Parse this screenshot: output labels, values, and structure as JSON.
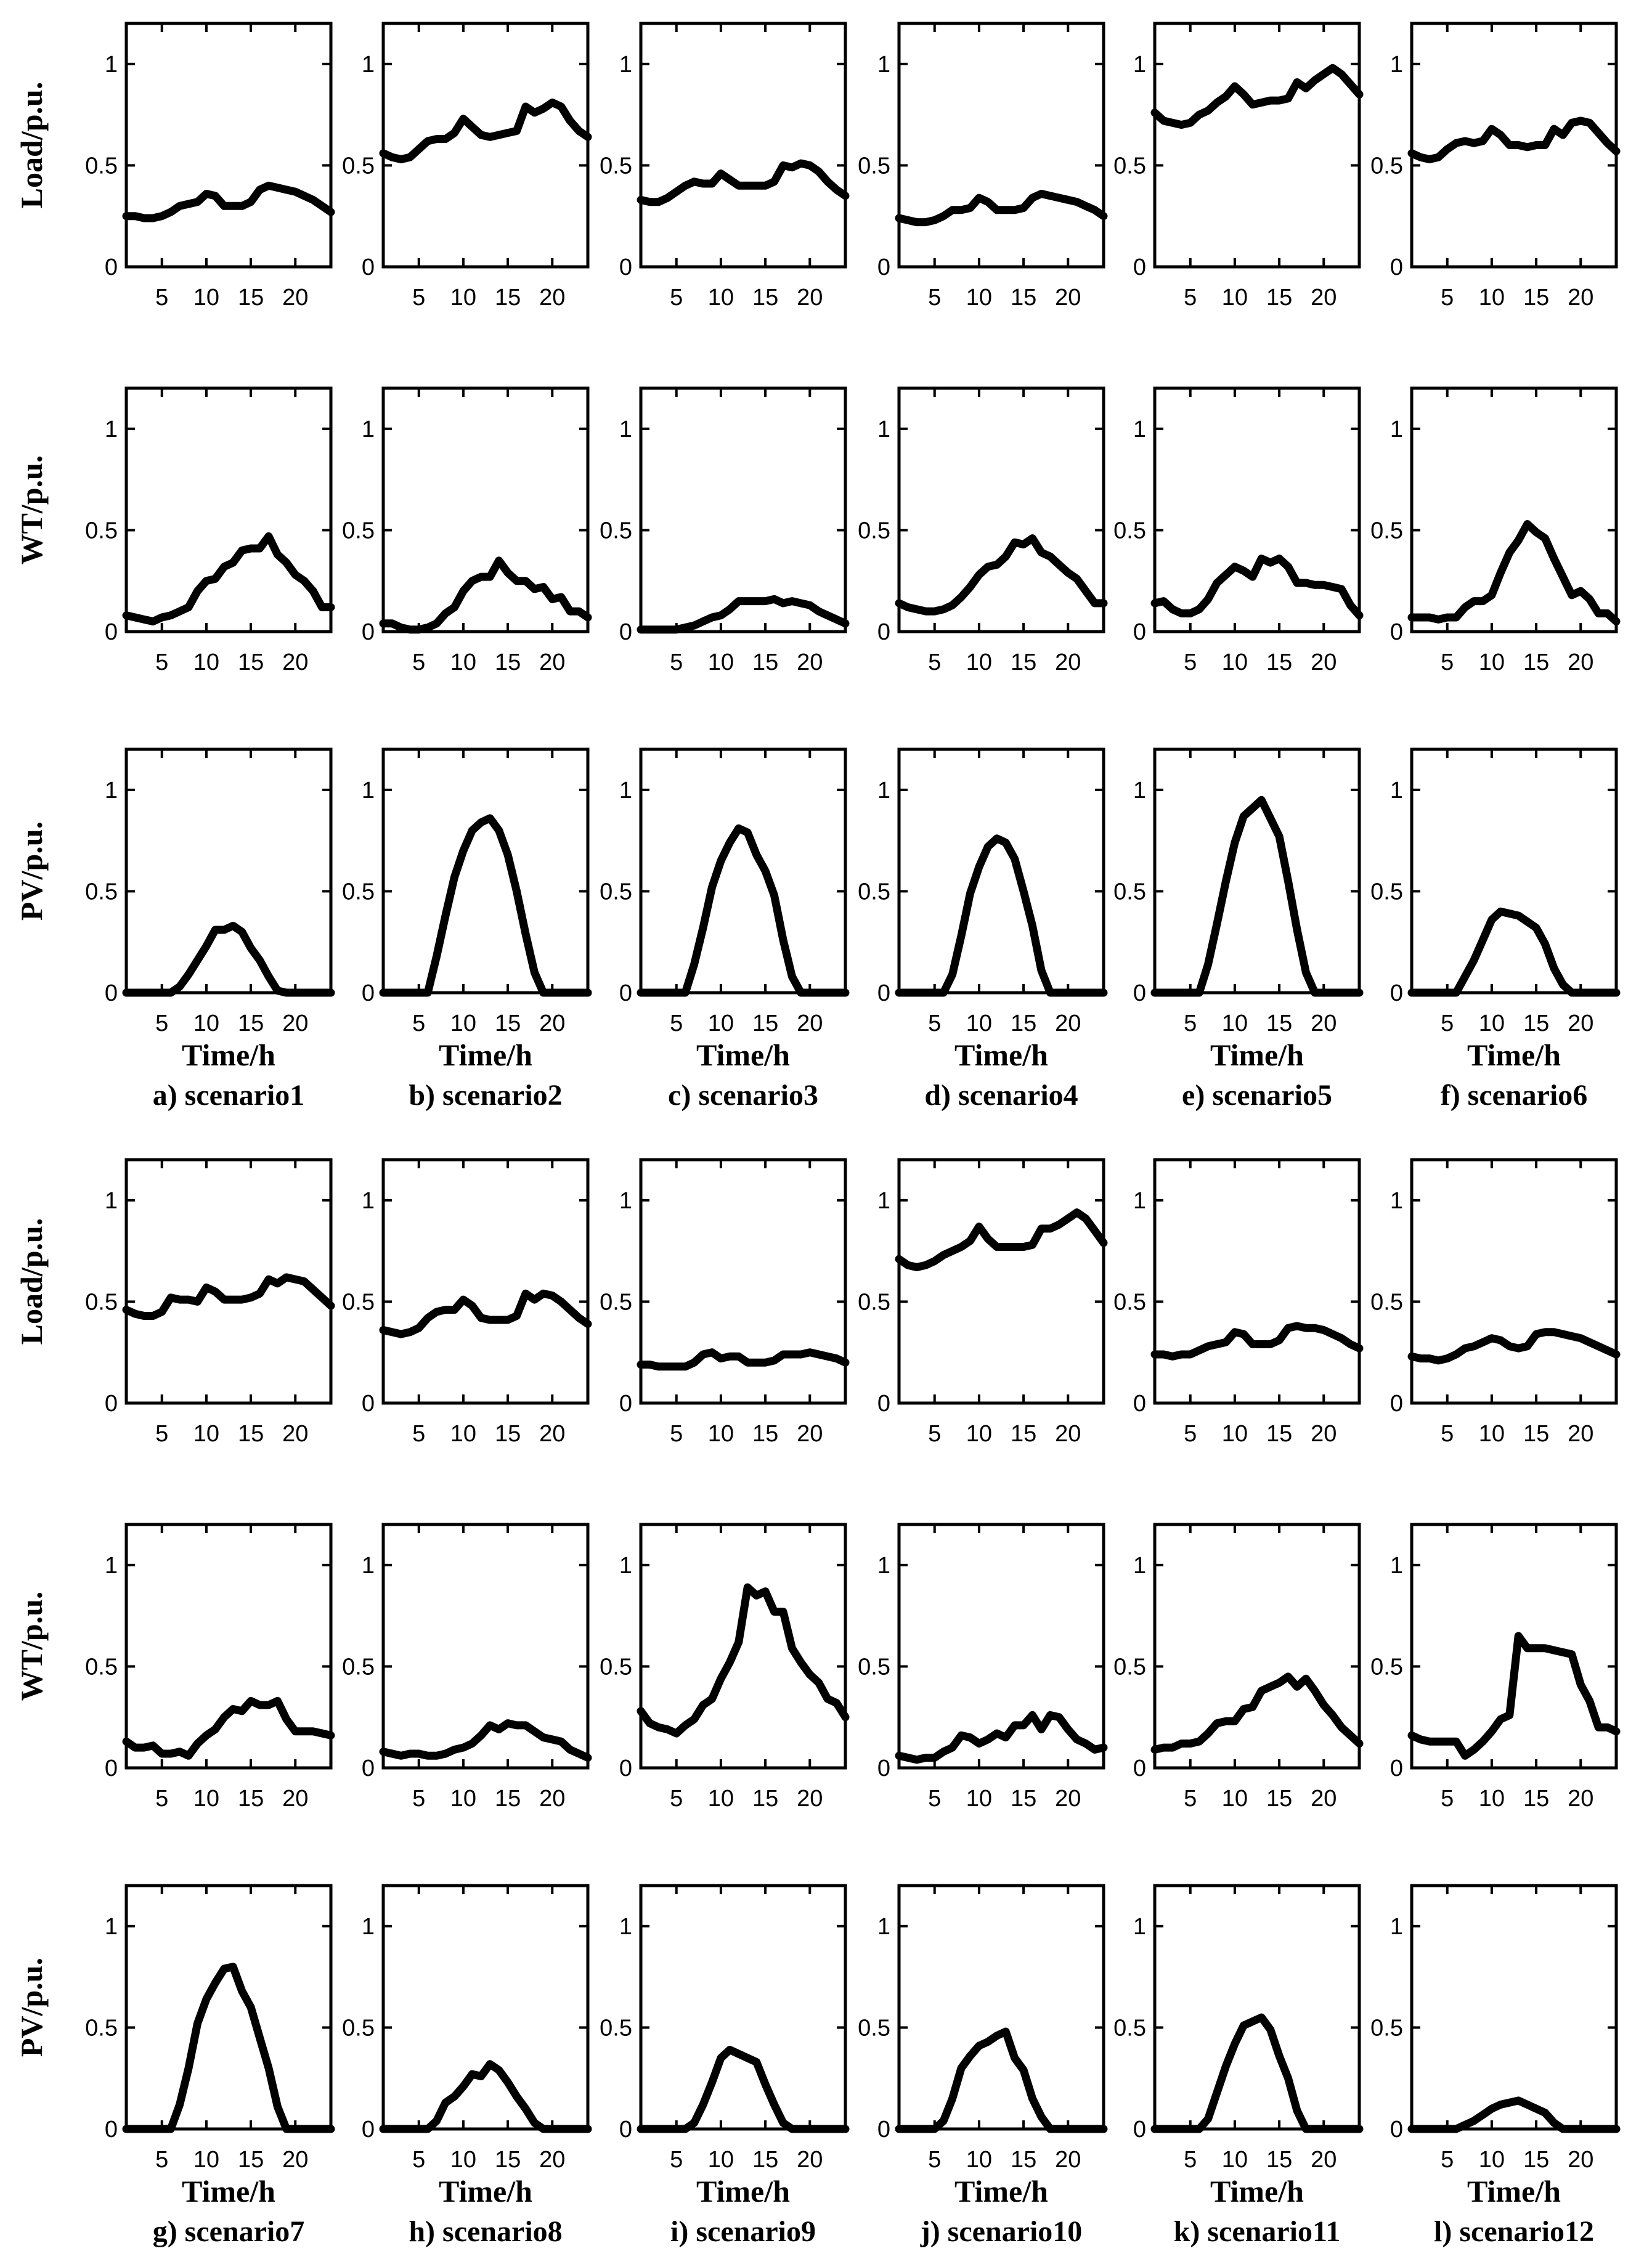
{
  "chart_data": {
    "type": "line",
    "layout": "small-multiples",
    "x": [
      1,
      2,
      3,
      4,
      5,
      6,
      7,
      8,
      9,
      10,
      11,
      12,
      13,
      14,
      15,
      16,
      17,
      18,
      19,
      20,
      21,
      22,
      23,
      24
    ],
    "xticks": [
      5,
      10,
      15,
      20
    ],
    "xtick_labels": [
      "5",
      "10",
      "15",
      "20"
    ],
    "yticks": [
      0,
      0.5,
      1
    ],
    "ytick_labels": [
      "0",
      "0.5",
      "1"
    ],
    "ylim": [
      0,
      1.2
    ],
    "xlim": [
      1,
      24
    ],
    "xlabel": "Time/h",
    "row_labels": {
      "load": "Load/p.u.",
      "wt": "WT/p.u.",
      "pv": "PV/p.u."
    },
    "scenarios": [
      {
        "caption": "a) scenario1",
        "load": [
          0.25,
          0.25,
          0.24,
          0.24,
          0.25,
          0.27,
          0.3,
          0.31,
          0.32,
          0.36,
          0.35,
          0.3,
          0.3,
          0.3,
          0.32,
          0.38,
          0.4,
          0.39,
          0.38,
          0.37,
          0.35,
          0.33,
          0.3,
          0.27
        ],
        "wt": [
          0.08,
          0.07,
          0.06,
          0.05,
          0.07,
          0.08,
          0.1,
          0.12,
          0.2,
          0.25,
          0.26,
          0.32,
          0.34,
          0.4,
          0.41,
          0.41,
          0.47,
          0.38,
          0.34,
          0.28,
          0.25,
          0.2,
          0.12,
          0.12
        ],
        "pv": [
          0,
          0,
          0,
          0,
          0,
          0,
          0.03,
          0.09,
          0.16,
          0.23,
          0.31,
          0.31,
          0.33,
          0.3,
          0.22,
          0.16,
          0.08,
          0.01,
          0,
          0,
          0,
          0,
          0,
          0
        ]
      },
      {
        "caption": "b) scenario2",
        "load": [
          0.56,
          0.54,
          0.53,
          0.54,
          0.58,
          0.62,
          0.63,
          0.63,
          0.66,
          0.73,
          0.69,
          0.65,
          0.64,
          0.65,
          0.66,
          0.67,
          0.79,
          0.76,
          0.78,
          0.81,
          0.79,
          0.72,
          0.67,
          0.64
        ],
        "wt": [
          0.04,
          0.04,
          0.02,
          0.01,
          0.01,
          0.02,
          0.04,
          0.09,
          0.12,
          0.2,
          0.25,
          0.27,
          0.27,
          0.35,
          0.29,
          0.25,
          0.25,
          0.21,
          0.22,
          0.16,
          0.17,
          0.1,
          0.1,
          0.07
        ],
        "pv": [
          0,
          0,
          0,
          0,
          0,
          0,
          0.18,
          0.38,
          0.57,
          0.7,
          0.8,
          0.84,
          0.86,
          0.8,
          0.68,
          0.5,
          0.29,
          0.1,
          0,
          0,
          0,
          0,
          0,
          0
        ]
      },
      {
        "caption": "c) scenario3",
        "load": [
          0.33,
          0.32,
          0.32,
          0.34,
          0.37,
          0.4,
          0.42,
          0.41,
          0.41,
          0.46,
          0.43,
          0.4,
          0.4,
          0.4,
          0.4,
          0.42,
          0.5,
          0.49,
          0.51,
          0.5,
          0.47,
          0.42,
          0.38,
          0.35
        ],
        "wt": [
          0.01,
          0.01,
          0.01,
          0.01,
          0.01,
          0.02,
          0.03,
          0.05,
          0.07,
          0.08,
          0.11,
          0.15,
          0.15,
          0.15,
          0.15,
          0.16,
          0.14,
          0.15,
          0.14,
          0.13,
          0.1,
          0.08,
          0.06,
          0.04
        ],
        "pv": [
          0,
          0,
          0,
          0,
          0,
          0,
          0.14,
          0.32,
          0.52,
          0.65,
          0.74,
          0.81,
          0.79,
          0.68,
          0.6,
          0.48,
          0.26,
          0.08,
          0,
          0,
          0,
          0,
          0,
          0
        ]
      },
      {
        "caption": "d) scenario4",
        "load": [
          0.24,
          0.23,
          0.22,
          0.22,
          0.23,
          0.25,
          0.28,
          0.28,
          0.29,
          0.34,
          0.32,
          0.28,
          0.28,
          0.28,
          0.29,
          0.34,
          0.36,
          0.35,
          0.34,
          0.33,
          0.32,
          0.3,
          0.28,
          0.25
        ],
        "wt": [
          0.14,
          0.12,
          0.11,
          0.1,
          0.1,
          0.11,
          0.13,
          0.17,
          0.22,
          0.28,
          0.32,
          0.33,
          0.37,
          0.44,
          0.43,
          0.46,
          0.39,
          0.37,
          0.33,
          0.29,
          0.26,
          0.2,
          0.14,
          0.14
        ],
        "pv": [
          0,
          0,
          0,
          0,
          0,
          0,
          0.09,
          0.28,
          0.49,
          0.62,
          0.72,
          0.76,
          0.74,
          0.66,
          0.5,
          0.33,
          0.11,
          0,
          0,
          0,
          0,
          0,
          0,
          0
        ]
      },
      {
        "caption": "e) scenario5",
        "load": [
          0.76,
          0.72,
          0.71,
          0.7,
          0.71,
          0.75,
          0.77,
          0.81,
          0.84,
          0.89,
          0.85,
          0.8,
          0.81,
          0.82,
          0.82,
          0.83,
          0.91,
          0.88,
          0.92,
          0.95,
          0.98,
          0.95,
          0.9,
          0.85
        ],
        "wt": [
          0.14,
          0.15,
          0.11,
          0.09,
          0.09,
          0.11,
          0.16,
          0.24,
          0.28,
          0.32,
          0.3,
          0.27,
          0.36,
          0.34,
          0.36,
          0.32,
          0.24,
          0.24,
          0.23,
          0.23,
          0.22,
          0.21,
          0.13,
          0.08
        ],
        "pv": [
          0,
          0,
          0,
          0,
          0,
          0,
          0.14,
          0.34,
          0.55,
          0.74,
          0.87,
          0.91,
          0.95,
          0.86,
          0.77,
          0.55,
          0.31,
          0.1,
          0,
          0,
          0,
          0,
          0,
          0
        ]
      },
      {
        "caption": "f) scenario6",
        "load": [
          0.56,
          0.54,
          0.53,
          0.54,
          0.58,
          0.61,
          0.62,
          0.61,
          0.62,
          0.68,
          0.65,
          0.6,
          0.6,
          0.59,
          0.6,
          0.6,
          0.68,
          0.65,
          0.71,
          0.72,
          0.71,
          0.66,
          0.61,
          0.57
        ],
        "wt": [
          0.07,
          0.07,
          0.07,
          0.06,
          0.07,
          0.07,
          0.12,
          0.15,
          0.15,
          0.18,
          0.29,
          0.39,
          0.45,
          0.53,
          0.49,
          0.46,
          0.36,
          0.27,
          0.18,
          0.2,
          0.16,
          0.09,
          0.09,
          0.05
        ],
        "pv": [
          0,
          0,
          0,
          0,
          0,
          0,
          0.08,
          0.16,
          0.26,
          0.36,
          0.4,
          0.39,
          0.38,
          0.35,
          0.32,
          0.24,
          0.12,
          0.04,
          0,
          0,
          0,
          0,
          0,
          0
        ]
      },
      {
        "caption": "g) scenario7",
        "load": [
          0.46,
          0.44,
          0.43,
          0.43,
          0.45,
          0.52,
          0.51,
          0.51,
          0.5,
          0.57,
          0.55,
          0.51,
          0.51,
          0.51,
          0.52,
          0.54,
          0.61,
          0.59,
          0.62,
          0.61,
          0.6,
          0.56,
          0.52,
          0.48
        ],
        "wt": [
          0.13,
          0.1,
          0.1,
          0.11,
          0.07,
          0.07,
          0.08,
          0.06,
          0.12,
          0.16,
          0.19,
          0.25,
          0.29,
          0.28,
          0.33,
          0.31,
          0.31,
          0.33,
          0.24,
          0.18,
          0.18,
          0.18,
          0.17,
          0.16
        ],
        "pv": [
          0,
          0,
          0,
          0,
          0,
          0,
          0.12,
          0.3,
          0.52,
          0.64,
          0.72,
          0.79,
          0.8,
          0.68,
          0.6,
          0.45,
          0.3,
          0.11,
          0,
          0,
          0,
          0,
          0,
          0
        ]
      },
      {
        "caption": "h) scenario8",
        "load": [
          0.36,
          0.35,
          0.34,
          0.35,
          0.37,
          0.42,
          0.45,
          0.46,
          0.46,
          0.51,
          0.48,
          0.42,
          0.41,
          0.41,
          0.41,
          0.43,
          0.54,
          0.51,
          0.54,
          0.53,
          0.5,
          0.46,
          0.42,
          0.39
        ],
        "wt": [
          0.08,
          0.07,
          0.06,
          0.07,
          0.07,
          0.06,
          0.06,
          0.07,
          0.09,
          0.1,
          0.12,
          0.16,
          0.21,
          0.19,
          0.22,
          0.21,
          0.21,
          0.18,
          0.15,
          0.14,
          0.13,
          0.09,
          0.07,
          0.05
        ],
        "pv": [
          0,
          0,
          0,
          0,
          0,
          0,
          0.04,
          0.13,
          0.16,
          0.21,
          0.27,
          0.26,
          0.32,
          0.29,
          0.23,
          0.16,
          0.1,
          0.03,
          0,
          0,
          0,
          0,
          0,
          0
        ]
      },
      {
        "caption": "i) scenario9",
        "load": [
          0.19,
          0.19,
          0.18,
          0.18,
          0.18,
          0.18,
          0.2,
          0.24,
          0.25,
          0.22,
          0.23,
          0.23,
          0.2,
          0.2,
          0.2,
          0.21,
          0.24,
          0.24,
          0.24,
          0.25,
          0.24,
          0.23,
          0.22,
          0.2
        ],
        "wt": [
          0.28,
          0.22,
          0.2,
          0.19,
          0.17,
          0.21,
          0.24,
          0.31,
          0.34,
          0.44,
          0.52,
          0.62,
          0.89,
          0.85,
          0.87,
          0.77,
          0.77,
          0.59,
          0.52,
          0.46,
          0.42,
          0.34,
          0.32,
          0.25
        ],
        "pv": [
          0,
          0,
          0,
          0,
          0,
          0,
          0.03,
          0.12,
          0.23,
          0.35,
          0.39,
          0.37,
          0.35,
          0.33,
          0.22,
          0.12,
          0.03,
          0,
          0,
          0,
          0,
          0,
          0,
          0
        ]
      },
      {
        "caption": "j) scenario10",
        "load": [
          0.71,
          0.68,
          0.67,
          0.68,
          0.7,
          0.73,
          0.75,
          0.77,
          0.8,
          0.87,
          0.81,
          0.77,
          0.77,
          0.77,
          0.77,
          0.78,
          0.86,
          0.86,
          0.88,
          0.91,
          0.94,
          0.91,
          0.85,
          0.79
        ],
        "wt": [
          0.06,
          0.05,
          0.04,
          0.05,
          0.05,
          0.08,
          0.1,
          0.16,
          0.15,
          0.12,
          0.14,
          0.17,
          0.15,
          0.21,
          0.21,
          0.26,
          0.19,
          0.26,
          0.25,
          0.19,
          0.14,
          0.12,
          0.09,
          0.1
        ],
        "pv": [
          0,
          0,
          0,
          0,
          0,
          0.04,
          0.15,
          0.3,
          0.36,
          0.41,
          0.43,
          0.46,
          0.48,
          0.35,
          0.29,
          0.15,
          0.06,
          0,
          0,
          0,
          0,
          0,
          0,
          0
        ]
      },
      {
        "caption": "k) scenario11",
        "load": [
          0.24,
          0.24,
          0.23,
          0.24,
          0.24,
          0.26,
          0.28,
          0.29,
          0.3,
          0.35,
          0.34,
          0.29,
          0.29,
          0.29,
          0.31,
          0.37,
          0.38,
          0.37,
          0.37,
          0.36,
          0.34,
          0.32,
          0.29,
          0.27
        ],
        "wt": [
          0.09,
          0.1,
          0.1,
          0.12,
          0.12,
          0.13,
          0.17,
          0.22,
          0.23,
          0.23,
          0.29,
          0.3,
          0.38,
          0.4,
          0.42,
          0.45,
          0.4,
          0.44,
          0.38,
          0.31,
          0.26,
          0.2,
          0.16,
          0.12
        ],
        "pv": [
          0,
          0,
          0,
          0,
          0,
          0,
          0.05,
          0.18,
          0.31,
          0.42,
          0.51,
          0.53,
          0.55,
          0.49,
          0.36,
          0.25,
          0.09,
          0,
          0,
          0,
          0,
          0,
          0,
          0
        ]
      },
      {
        "caption": "l) scenario12",
        "load": [
          0.23,
          0.22,
          0.22,
          0.21,
          0.22,
          0.24,
          0.27,
          0.28,
          0.3,
          0.32,
          0.31,
          0.28,
          0.27,
          0.28,
          0.34,
          0.35,
          0.35,
          0.34,
          0.33,
          0.32,
          0.3,
          0.28,
          0.26,
          0.24
        ],
        "wt": [
          0.16,
          0.14,
          0.13,
          0.13,
          0.13,
          0.13,
          0.06,
          0.09,
          0.13,
          0.18,
          0.24,
          0.26,
          0.65,
          0.59,
          0.59,
          0.59,
          0.58,
          0.57,
          0.56,
          0.41,
          0.33,
          0.2,
          0.2,
          0.18
        ],
        "pv": [
          0,
          0,
          0,
          0,
          0,
          0,
          0.02,
          0.04,
          0.07,
          0.1,
          0.12,
          0.13,
          0.14,
          0.12,
          0.1,
          0.08,
          0.03,
          0,
          0,
          0,
          0,
          0,
          0,
          0
        ]
      }
    ]
  }
}
